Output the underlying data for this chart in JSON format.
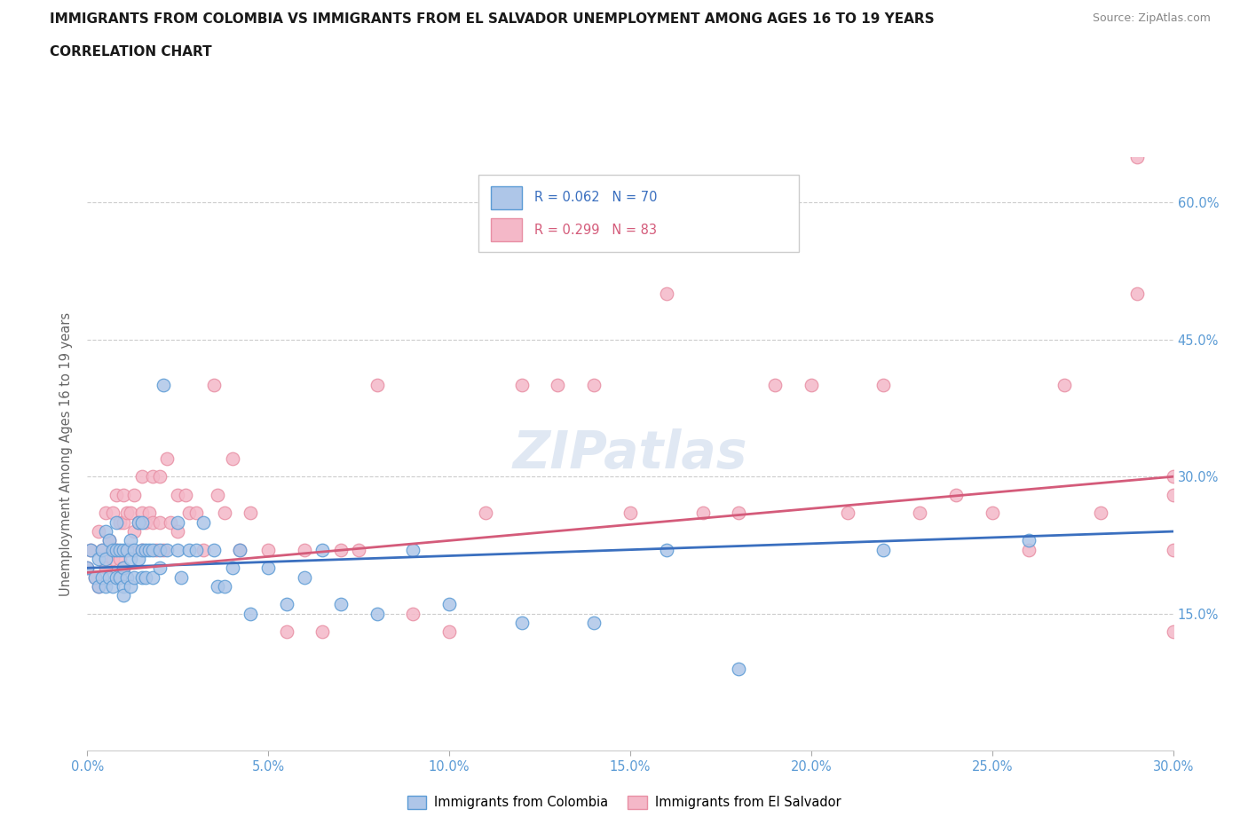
{
  "title_line1": "IMMIGRANTS FROM COLOMBIA VS IMMIGRANTS FROM EL SALVADOR UNEMPLOYMENT AMONG AGES 16 TO 19 YEARS",
  "title_line2": "CORRELATION CHART",
  "source_text": "Source: ZipAtlas.com",
  "ylabel_label": "Unemployment Among Ages 16 to 19 years",
  "xlim": [
    0.0,
    0.3
  ],
  "ylim": [
    0.0,
    0.65
  ],
  "watermark": "ZIPatlas",
  "colombia_color": "#aec6e8",
  "colombia_edge_color": "#5b9bd5",
  "colombia_line_color": "#3a6fbf",
  "el_salvador_color": "#f4b8c8",
  "el_salvador_edge_color": "#e88fa4",
  "el_salvador_line_color": "#d45b7a",
  "right_axis_color": "#5b9bd5",
  "bottom_axis_color": "#5b9bd5",
  "bg_color": "#ffffff",
  "grid_color": "#cccccc",
  "colombia_R": 0.062,
  "colombia_N": 70,
  "el_salvador_R": 0.299,
  "el_salvador_N": 83,
  "colombia_scatter_x": [
    0.0,
    0.001,
    0.002,
    0.003,
    0.003,
    0.004,
    0.004,
    0.005,
    0.005,
    0.005,
    0.006,
    0.006,
    0.007,
    0.007,
    0.008,
    0.008,
    0.008,
    0.009,
    0.009,
    0.01,
    0.01,
    0.01,
    0.01,
    0.011,
    0.011,
    0.012,
    0.012,
    0.012,
    0.013,
    0.013,
    0.014,
    0.014,
    0.015,
    0.015,
    0.015,
    0.016,
    0.016,
    0.017,
    0.018,
    0.018,
    0.02,
    0.02,
    0.021,
    0.022,
    0.025,
    0.025,
    0.026,
    0.028,
    0.03,
    0.032,
    0.035,
    0.036,
    0.038,
    0.04,
    0.042,
    0.045,
    0.05,
    0.055,
    0.06,
    0.065,
    0.07,
    0.08,
    0.09,
    0.1,
    0.12,
    0.14,
    0.16,
    0.18,
    0.22,
    0.26
  ],
  "colombia_scatter_y": [
    0.2,
    0.22,
    0.19,
    0.21,
    0.18,
    0.22,
    0.19,
    0.24,
    0.21,
    0.18,
    0.23,
    0.19,
    0.22,
    0.18,
    0.25,
    0.22,
    0.19,
    0.22,
    0.19,
    0.22,
    0.2,
    0.18,
    0.17,
    0.22,
    0.19,
    0.23,
    0.21,
    0.18,
    0.22,
    0.19,
    0.25,
    0.21,
    0.25,
    0.22,
    0.19,
    0.22,
    0.19,
    0.22,
    0.22,
    0.19,
    0.22,
    0.2,
    0.4,
    0.22,
    0.25,
    0.22,
    0.19,
    0.22,
    0.22,
    0.25,
    0.22,
    0.18,
    0.18,
    0.2,
    0.22,
    0.15,
    0.2,
    0.16,
    0.19,
    0.22,
    0.16,
    0.15,
    0.22,
    0.16,
    0.14,
    0.14,
    0.22,
    0.09,
    0.22,
    0.23
  ],
  "el_salvador_scatter_x": [
    0.0,
    0.001,
    0.002,
    0.003,
    0.003,
    0.004,
    0.005,
    0.005,
    0.006,
    0.007,
    0.007,
    0.008,
    0.008,
    0.009,
    0.009,
    0.01,
    0.01,
    0.01,
    0.011,
    0.011,
    0.012,
    0.012,
    0.013,
    0.013,
    0.014,
    0.015,
    0.015,
    0.015,
    0.016,
    0.017,
    0.018,
    0.018,
    0.019,
    0.02,
    0.02,
    0.021,
    0.022,
    0.023,
    0.025,
    0.025,
    0.027,
    0.028,
    0.03,
    0.032,
    0.035,
    0.036,
    0.038,
    0.04,
    0.042,
    0.045,
    0.05,
    0.055,
    0.06,
    0.065,
    0.07,
    0.075,
    0.08,
    0.09,
    0.1,
    0.11,
    0.12,
    0.13,
    0.14,
    0.15,
    0.16,
    0.17,
    0.18,
    0.19,
    0.2,
    0.21,
    0.22,
    0.23,
    0.24,
    0.25,
    0.26,
    0.27,
    0.28,
    0.29,
    0.29,
    0.3,
    0.3,
    0.3,
    0.3
  ],
  "el_salvador_scatter_y": [
    0.2,
    0.22,
    0.19,
    0.24,
    0.18,
    0.22,
    0.26,
    0.2,
    0.23,
    0.26,
    0.21,
    0.28,
    0.22,
    0.25,
    0.21,
    0.28,
    0.25,
    0.2,
    0.26,
    0.22,
    0.26,
    0.22,
    0.28,
    0.24,
    0.25,
    0.3,
    0.26,
    0.22,
    0.25,
    0.26,
    0.3,
    0.25,
    0.22,
    0.3,
    0.25,
    0.22,
    0.32,
    0.25,
    0.28,
    0.24,
    0.28,
    0.26,
    0.26,
    0.22,
    0.4,
    0.28,
    0.26,
    0.32,
    0.22,
    0.26,
    0.22,
    0.13,
    0.22,
    0.13,
    0.22,
    0.22,
    0.4,
    0.15,
    0.13,
    0.26,
    0.4,
    0.4,
    0.4,
    0.26,
    0.5,
    0.26,
    0.26,
    0.4,
    0.4,
    0.26,
    0.4,
    0.26,
    0.28,
    0.26,
    0.22,
    0.4,
    0.26,
    0.65,
    0.5,
    0.3,
    0.28,
    0.13,
    0.22
  ]
}
